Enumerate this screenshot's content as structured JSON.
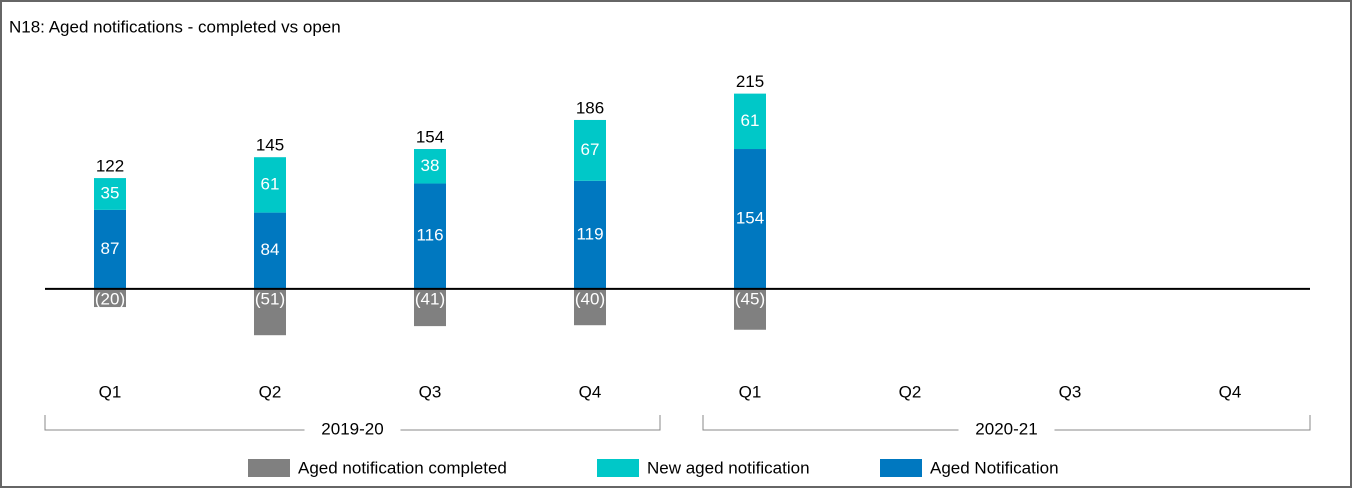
{
  "chart_data": {
    "type": "stacked-bar",
    "title": "N18: Aged notifications - completed vs open",
    "categories": [
      "Q1",
      "Q2",
      "Q3",
      "Q4",
      "Q1",
      "Q2",
      "Q3",
      "Q4"
    ],
    "groups": [
      "2019-20",
      "2020-21"
    ],
    "series": [
      {
        "name": "Aged notification completed",
        "color": "#808080",
        "values": [
          -20,
          -51,
          -41,
          -40,
          -45,
          null,
          null,
          null
        ],
        "value_labels": [
          "(20)",
          "(51)",
          "(41)",
          "(40)",
          "(45)",
          null,
          null,
          null
        ]
      },
      {
        "name": "New aged notification",
        "color": "#00c8c8",
        "values": [
          35,
          61,
          38,
          67,
          61,
          null,
          null,
          null
        ]
      },
      {
        "name": "Aged Notification",
        "color": "#0078c0",
        "values": [
          87,
          84,
          116,
          119,
          154,
          null,
          null,
          null
        ]
      }
    ],
    "totals": [
      122,
      145,
      154,
      186,
      215,
      null,
      null,
      null
    ],
    "ylim": [
      -75,
      230
    ]
  }
}
